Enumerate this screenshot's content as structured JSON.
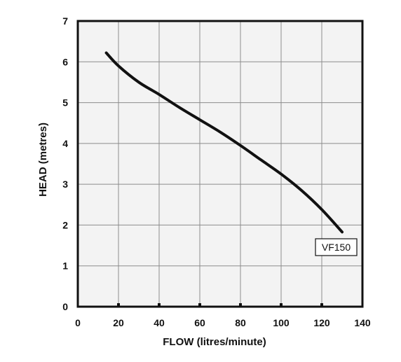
{
  "chart_data": {
    "type": "line",
    "title": "",
    "xlabel": "FLOW (litres/minute)",
    "ylabel": "HEAD (metres)",
    "xlim": [
      0,
      140
    ],
    "ylim": [
      0,
      7
    ],
    "xticks": [
      0,
      20,
      40,
      60,
      80,
      100,
      120,
      140
    ],
    "yticks": [
      0,
      1,
      2,
      3,
      4,
      5,
      6,
      7
    ],
    "grid": true,
    "series": [
      {
        "name": "VF150",
        "x": [
          14,
          20,
          30,
          40,
          50,
          60,
          70,
          80,
          90,
          100,
          110,
          120,
          130
        ],
        "y": [
          6.22,
          5.9,
          5.5,
          5.2,
          4.88,
          4.58,
          4.28,
          3.95,
          3.6,
          3.25,
          2.85,
          2.38,
          1.83
        ]
      }
    ],
    "line_color": "#111111",
    "plot_background": "#f3f3f3",
    "grid_color": "#8c8c8c"
  }
}
